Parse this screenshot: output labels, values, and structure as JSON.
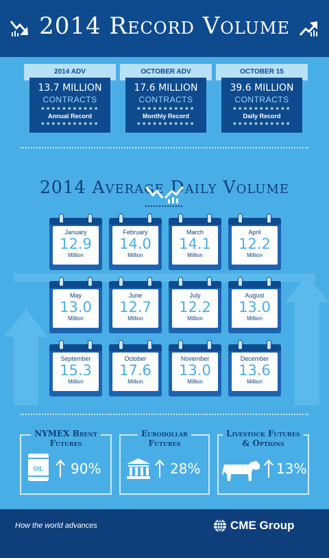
{
  "header": {
    "title": "2014 Record Volume",
    "icon_left": "down-trend-icon",
    "icon_right": "up-trend-icon"
  },
  "stats": [
    {
      "banner": "2014 ADV",
      "value": "13.7 MILLION",
      "unit": "CONTRACTS",
      "stars": "★★★★★★★★★★★",
      "label": "Annual Record"
    },
    {
      "banner": "OCTOBER ADV",
      "value": "17.6 MILLION",
      "unit": "CONTRACTS",
      "stars": "★★★★★★★★★★★",
      "label": "Monthly Record"
    },
    {
      "banner": "OCTOBER 15",
      "value": "39.6 MILLION",
      "unit": "CONTRACTS",
      "stars": "★★★★★★★★★★★",
      "label": "Daily Record"
    }
  ],
  "section_title": "2014 Average Daily Volume",
  "months": [
    {
      "name": "January",
      "value": "12.9",
      "unit": "Million"
    },
    {
      "name": "February",
      "value": "14.0",
      "unit": "Million"
    },
    {
      "name": "March",
      "value": "14.1",
      "unit": "Million"
    },
    {
      "name": "April",
      "value": "12.2",
      "unit": "Million"
    },
    {
      "name": "May",
      "value": "13.0",
      "unit": "Million"
    },
    {
      "name": "June",
      "value": "12.7",
      "unit": "Million"
    },
    {
      "name": "July",
      "value": "12.2",
      "unit": "Million"
    },
    {
      "name": "August",
      "value": "13.0",
      "unit": "Million"
    },
    {
      "name": "September",
      "value": "15.3",
      "unit": "Million"
    },
    {
      "name": "October",
      "value": "17.6",
      "unit": "Million"
    },
    {
      "name": "November",
      "value": "13.0",
      "unit": "Million"
    },
    {
      "name": "December",
      "value": "13.6",
      "unit": "Million"
    }
  ],
  "futures": [
    {
      "title_line1": "NYMEX Brent",
      "title_line2": "Futures",
      "icon": "oil-barrel-icon",
      "icon_text": "OIL",
      "percent": "90%"
    },
    {
      "title_line1": "Eurodollar",
      "title_line2": "Futures",
      "icon": "bank-building-icon",
      "percent": "28%"
    },
    {
      "title_line1": "Livestock Futures",
      "title_line2": "& Options",
      "icon": "cow-icon",
      "percent": "13%"
    }
  ],
  "footer": {
    "tagline": "How the world advances",
    "logo_text": "CME Group",
    "logo_icon": "globe-icon"
  },
  "colors": {
    "background": "#4aaee6",
    "navy": "#0e4a8e",
    "dark_navy": "#0e3f7a",
    "light": "#cfeafb"
  }
}
